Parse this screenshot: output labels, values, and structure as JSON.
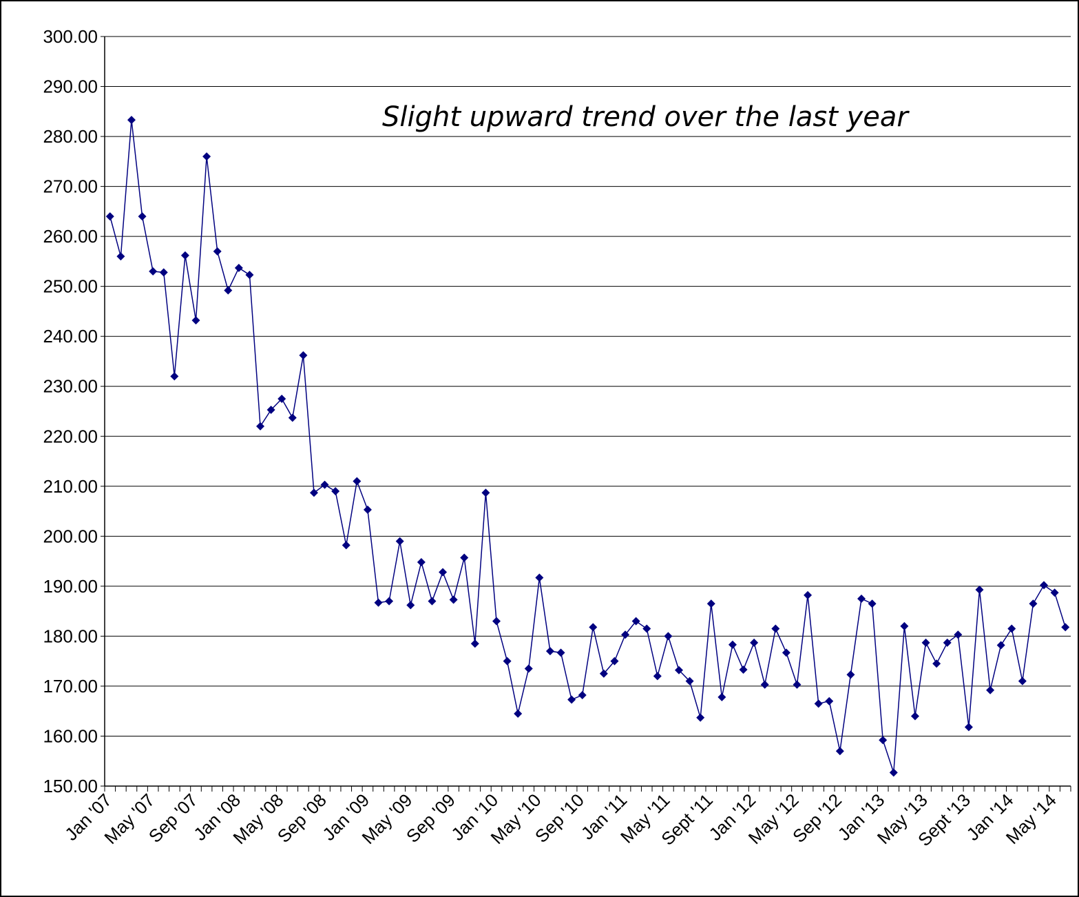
{
  "chart_data": {
    "type": "line",
    "annotation": "Slight upward trend over the last year",
    "categories": [
      "Jan '07",
      null,
      null,
      null,
      "May '07",
      null,
      null,
      null,
      "Sep '07",
      null,
      null,
      null,
      "Jan '08",
      null,
      null,
      null,
      "May '08",
      null,
      null,
      null,
      "Sep '08",
      null,
      null,
      null,
      "Jan '09",
      null,
      null,
      null,
      "May '09",
      null,
      null,
      null,
      "Sep '09",
      null,
      null,
      null,
      "Jan '10",
      null,
      null,
      null,
      "May '10",
      null,
      null,
      null,
      "Sep '10",
      null,
      null,
      null,
      "Jan '11",
      null,
      null,
      null,
      "May '11",
      null,
      null,
      null,
      "Sept '11",
      null,
      null,
      null,
      "Jan '12",
      null,
      null,
      null,
      "May '12",
      null,
      null,
      null,
      "Sep '12",
      null,
      null,
      null,
      "Jan '13",
      null,
      null,
      null,
      "May '13",
      null,
      null,
      null,
      "Sept '13",
      null,
      null,
      null,
      "Jan '14",
      null,
      null,
      null,
      "May '14",
      null
    ],
    "series": [
      {
        "color": "#000080",
        "values": [
          264,
          256,
          283.3,
          264,
          253,
          252.8,
          232,
          256.2,
          243.2,
          276,
          257,
          249.2,
          253.7,
          252.3,
          222,
          225.3,
          227.5,
          223.7,
          236.2,
          208.7,
          210.3,
          209,
          198.2,
          211,
          205.3,
          186.7,
          187,
          199,
          186.2,
          194.8,
          187,
          192.8,
          187.3,
          195.7,
          178.5,
          208.7,
          183,
          175,
          164.5,
          173.5,
          191.7,
          177,
          176.7,
          167.3,
          168.2,
          181.8,
          172.5,
          175,
          180.3,
          183,
          181.5,
          172,
          180,
          173.2,
          171,
          163.7,
          186.5,
          167.8,
          178.3,
          173.3,
          178.7,
          170.3,
          181.5,
          176.7,
          170.3,
          188.2,
          166.5,
          167,
          157,
          172.3,
          187.5,
          186.5,
          159.2,
          152.7,
          182,
          164,
          178.7,
          174.5,
          178.7,
          180.3,
          161.8,
          189.3,
          169.2,
          178.2,
          181.5,
          171,
          186.5,
          190.2,
          188.7,
          181.8
        ]
      }
    ],
    "ylim": [
      150,
      300
    ],
    "yticks": [
      {
        "value": 150,
        "label": "150.00"
      },
      {
        "value": 160,
        "label": "160.00"
      },
      {
        "value": 170,
        "label": "170.00"
      },
      {
        "value": 180,
        "label": "180.00"
      },
      {
        "value": 190,
        "label": "190.00"
      },
      {
        "value": 200,
        "label": "200.00"
      },
      {
        "value": 210,
        "label": "210.00"
      },
      {
        "value": 220,
        "label": "220.00"
      },
      {
        "value": 230,
        "label": "230.00"
      },
      {
        "value": 240,
        "label": "240.00"
      },
      {
        "value": 250,
        "label": "250.00"
      },
      {
        "value": 260,
        "label": "260.00"
      },
      {
        "value": 270,
        "label": "270.00"
      },
      {
        "value": 280,
        "label": "280.00"
      },
      {
        "value": 290,
        "label": "290.00"
      },
      {
        "value": 300,
        "label": "300.00"
      }
    ],
    "grid": true
  }
}
